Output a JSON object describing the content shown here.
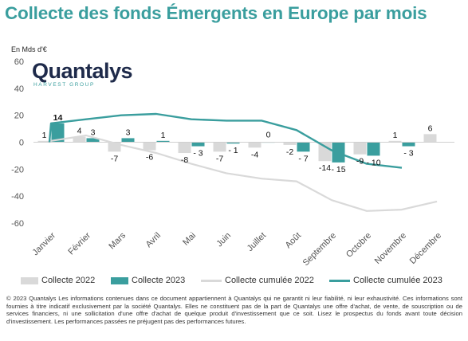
{
  "title": "Collecte des fonds Émergents en Europe par mois",
  "unit_label": "En Mds d'€",
  "logo": {
    "name": "Quantalys",
    "tagline": "HARVEST GROUP"
  },
  "colors": {
    "title": "#3a9e9e",
    "collecte_2022": "#d9d9d9",
    "collecte_2023": "#3a9e9e",
    "cumulee_2022": "#d9d9d9",
    "cumulee_2023": "#3a9e9e",
    "logo": "#1e2a4a"
  },
  "chart_data": {
    "type": "bar",
    "categories": [
      "Janvier",
      "Février",
      "Mars",
      "Avril",
      "Mai",
      "Juin",
      "Juillet",
      "Août",
      "Septembre",
      "Octobre",
      "Novembre",
      "Décembre"
    ],
    "ylim": [
      -60,
      60
    ],
    "yticks": [
      60,
      40,
      20,
      0,
      -20,
      -40,
      -60
    ],
    "grid": false,
    "legend_position": "bottom",
    "series": [
      {
        "name": "Collecte 2022",
        "type": "bar",
        "values": [
          1,
          4,
          -7,
          -6,
          -8,
          -7,
          -4,
          -2,
          -14,
          -9,
          1,
          6
        ],
        "labels": [
          "1",
          "4",
          "-7",
          "-6",
          "-8",
          "-7",
          "-4",
          "-2",
          "-14",
          "-9",
          "1",
          "6"
        ]
      },
      {
        "name": "Collecte 2023",
        "type": "bar",
        "values": [
          14,
          3,
          3,
          1,
          -3,
          -1,
          0,
          -7,
          -15,
          -10,
          -3,
          null
        ],
        "labels": [
          "14",
          "3",
          "3",
          "1",
          "- 3",
          "- 1",
          "0",
          "- 7",
          "- 15",
          "- 10",
          "- 3",
          ""
        ]
      },
      {
        "name": "Collecte cumulée 2022",
        "type": "line",
        "values": [
          1,
          5,
          -2,
          -8,
          -16,
          -23,
          -27,
          -29,
          -43,
          -51,
          -50,
          -44
        ]
      },
      {
        "name": "Collecte cumulée 2023",
        "type": "line",
        "values": [
          14,
          17,
          20,
          21,
          17,
          16,
          16,
          9,
          -6,
          -16,
          -19,
          null
        ]
      }
    ]
  },
  "legend": {
    "items": [
      "Collecte 2022",
      "Collecte 2023",
      "Collecte cumulée 2022",
      "Collecte cumulée 2023"
    ]
  },
  "disclaimer": "© 2023 Quantalys Les informations contenues dans ce document appartiennent à Quantalys qui ne garantit ni leur fiabilité, ni leur exhaustivité. Ces informations sont fournies à titre indicatif exclusivement par la société Quantalys. Elles ne constituent pas de la part de Quantalys une offre d'achat, de vente, de souscription ou de services financiers, ni une sollicitation d'une offre d'achat de quelque produit d'investissement que ce soit. Lisez le prospectus du fonds avant toute décision d'investissement. Les performances passées ne préjugent pas des performances futures."
}
